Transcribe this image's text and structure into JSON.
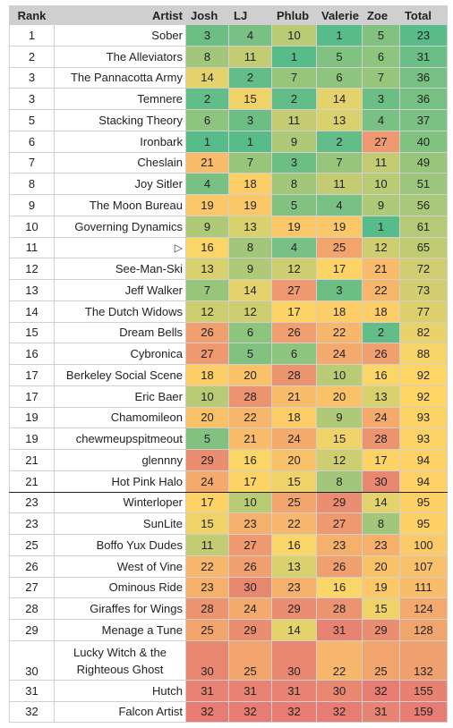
{
  "headers": [
    "Rank",
    "Artist",
    "Josh",
    "LJ",
    "Phlub",
    "Valerie",
    "Zoe",
    "Total"
  ],
  "colors": {
    "low": "#57bb8a",
    "mid": "#ffd666",
    "high": "#e67c73",
    "header_bg": "#cfcfcf"
  },
  "rows": [
    {
      "rank": "1",
      "artist": "Sober",
      "scores": [
        "3",
        "4",
        "10",
        "1",
        "5"
      ],
      "total": "23"
    },
    {
      "rank": "2",
      "artist": "The Alleviators",
      "scores": [
        "8",
        "11",
        "1",
        "5",
        "6"
      ],
      "total": "31"
    },
    {
      "rank": "3",
      "artist": "The Pannacotta Army",
      "scores": [
        "14",
        "2",
        "7",
        "6",
        "7"
      ],
      "total": "36"
    },
    {
      "rank": "3",
      "artist": "Temnere",
      "scores": [
        "2",
        "15",
        "2",
        "14",
        "3"
      ],
      "total": "36"
    },
    {
      "rank": "5",
      "artist": "Stacking Theory",
      "scores": [
        "6",
        "3",
        "11",
        "13",
        "4"
      ],
      "total": "37"
    },
    {
      "rank": "6",
      "artist": "Ironbark",
      "scores": [
        "1",
        "1",
        "9",
        "2",
        "27"
      ],
      "total": "40"
    },
    {
      "rank": "7",
      "artist": "Cheslain",
      "scores": [
        "21",
        "7",
        "3",
        "7",
        "11"
      ],
      "total": "49"
    },
    {
      "rank": "8",
      "artist": "Joy Sitler",
      "scores": [
        "4",
        "18",
        "8",
        "11",
        "10"
      ],
      "total": "51"
    },
    {
      "rank": "9",
      "artist": "The Moon Bureau",
      "scores": [
        "19",
        "19",
        "5",
        "4",
        "9"
      ],
      "total": "56"
    },
    {
      "rank": "10",
      "artist": "Governing Dynamics",
      "scores": [
        "9",
        "13",
        "19",
        "19",
        "1"
      ],
      "total": "61"
    },
    {
      "rank": "11",
      "artist": "",
      "icon": "play-icon",
      "scores": [
        "16",
        "8",
        "4",
        "25",
        "12"
      ],
      "total": "65"
    },
    {
      "rank": "12",
      "artist": "See-Man-Ski",
      "scores": [
        "13",
        "9",
        "12",
        "17",
        "21"
      ],
      "total": "72"
    },
    {
      "rank": "13",
      "artist": "Jeff Walker",
      "scores": [
        "7",
        "14",
        "27",
        "3",
        "22"
      ],
      "total": "73"
    },
    {
      "rank": "14",
      "artist": "The Dutch Widows",
      "scores": [
        "12",
        "12",
        "17",
        "18",
        "18"
      ],
      "total": "77"
    },
    {
      "rank": "15",
      "artist": "Dream Bells",
      "scores": [
        "26",
        "6",
        "26",
        "22",
        "2"
      ],
      "total": "82"
    },
    {
      "rank": "16",
      "artist": "Cybronica",
      "scores": [
        "27",
        "5",
        "6",
        "24",
        "26"
      ],
      "total": "88"
    },
    {
      "rank": "17",
      "artist": "Berkeley Social Scene",
      "scores": [
        "18",
        "20",
        "28",
        "10",
        "16"
      ],
      "total": "92"
    },
    {
      "rank": "17",
      "artist": "Eric Baer",
      "scores": [
        "10",
        "28",
        "21",
        "20",
        "13"
      ],
      "total": "92"
    },
    {
      "rank": "19",
      "artist": "Chamomileon",
      "scores": [
        "20",
        "22",
        "18",
        "9",
        "24"
      ],
      "total": "93"
    },
    {
      "rank": "19",
      "artist": "chewmeupspitmeout",
      "scores": [
        "5",
        "21",
        "24",
        "15",
        "28"
      ],
      "total": "93"
    },
    {
      "rank": "21",
      "artist": "glennny",
      "scores": [
        "29",
        "16",
        "20",
        "12",
        "17"
      ],
      "total": "94"
    },
    {
      "rank": "21",
      "artist": "Hot Pink Halo",
      "scores": [
        "24",
        "17",
        "15",
        "8",
        "30"
      ],
      "total": "94",
      "separator": true
    },
    {
      "rank": "23",
      "artist": "Winterloper",
      "scores": [
        "17",
        "10",
        "25",
        "29",
        "14"
      ],
      "total": "95"
    },
    {
      "rank": "23",
      "artist": "SunLite",
      "scores": [
        "15",
        "23",
        "22",
        "27",
        "8"
      ],
      "total": "95"
    },
    {
      "rank": "25",
      "artist": "Boffo Yux Dudes",
      "scores": [
        "11",
        "27",
        "16",
        "23",
        "23"
      ],
      "total": "100"
    },
    {
      "rank": "26",
      "artist": "West of Vine",
      "scores": [
        "22",
        "26",
        "13",
        "26",
        "20"
      ],
      "total": "107"
    },
    {
      "rank": "27",
      "artist": "Ominous Ride",
      "scores": [
        "23",
        "30",
        "23",
        "16",
        "19"
      ],
      "total": "111"
    },
    {
      "rank": "28",
      "artist": "Giraffes for Wings",
      "scores": [
        "28",
        "24",
        "29",
        "28",
        "15"
      ],
      "total": "124"
    },
    {
      "rank": "29",
      "artist": "Menage a Tune",
      "scores": [
        "25",
        "29",
        "14",
        "31",
        "29"
      ],
      "total": "128"
    },
    {
      "rank": "30",
      "artist": "Lucky Witch & the Righteous Ghost",
      "scores": [
        "30",
        "25",
        "30",
        "22",
        "25"
      ],
      "total": "132",
      "tall": true
    },
    {
      "rank": "31",
      "artist": "Hutch",
      "scores": [
        "31",
        "31",
        "31",
        "30",
        "32"
      ],
      "total": "155"
    },
    {
      "rank": "32",
      "artist": "Falcon Artist",
      "scores": [
        "32",
        "32",
        "32",
        "32",
        "31"
      ],
      "total": "159"
    }
  ]
}
